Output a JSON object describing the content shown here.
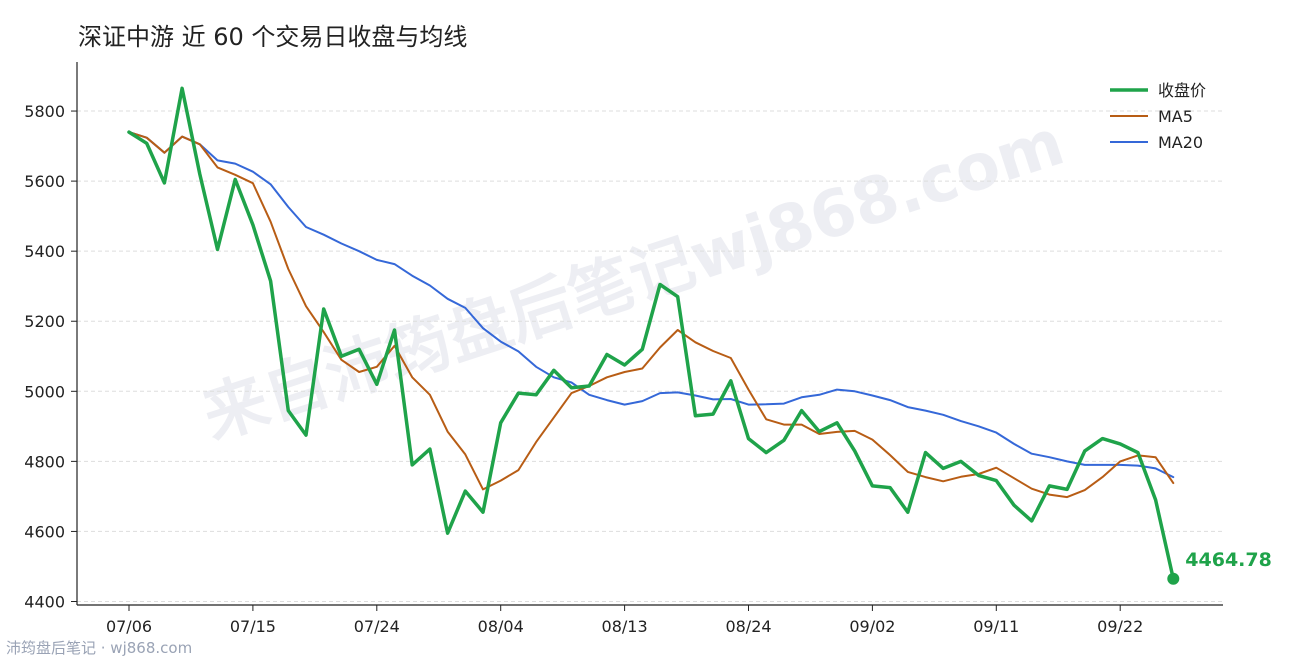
{
  "watermark": "来自沛筠盘后笔记wj868.com",
  "source": "沛筠盘后笔记 · wj868.com",
  "colors": {
    "close": "#1fa34a",
    "ma5": "#b85d15",
    "ma20": "#3568d8",
    "grid": "#dddddd"
  },
  "chart_data": {
    "type": "line",
    "title": "深证中游 近 60 个交易日收盘与均线",
    "x_tick_labels": [
      "07/06",
      "07/15",
      "07/24",
      "08/04",
      "08/13",
      "08/24",
      "09/02",
      "09/11",
      "09/22"
    ],
    "x_tick_index": [
      0,
      7,
      14,
      21,
      28,
      35,
      42,
      49,
      56
    ],
    "y_ticks": [
      4400,
      4600,
      4800,
      5000,
      5200,
      5400,
      5600,
      5800
    ],
    "ylim": [
      4390,
      5940
    ],
    "grid": "horizontal dashed",
    "legend_position": "top-right",
    "last_value_label": "4464.78",
    "series": [
      {
        "name": "收盘价",
        "key": "close",
        "values": [
          5740,
          5708,
          5595,
          5865,
          5620,
          5405,
          5605,
          5475,
          5315,
          4945,
          4875,
          5235,
          5100,
          5120,
          5020,
          5175,
          4790,
          4835,
          4595,
          4715,
          4655,
          4910,
          4995,
          4990,
          5060,
          5010,
          5015,
          5105,
          5075,
          5120,
          5305,
          5270,
          4930,
          4935,
          5030,
          4865,
          4825,
          4860,
          4945,
          4885,
          4910,
          4830,
          4730,
          4725,
          4655,
          4825,
          4780,
          4800,
          4760,
          4745,
          4675,
          4630,
          4730,
          4720,
          4830,
          4865,
          4850,
          4825,
          4690,
          4464.78
        ]
      },
      {
        "name": "MA5",
        "key": "ma5",
        "values": [
          5740,
          5724,
          5681,
          5727,
          5705,
          5639,
          5618,
          5594,
          5484,
          5349,
          5243,
          5169,
          5090,
          5055,
          5070,
          5130,
          5040,
          4990,
          4885,
          4820,
          4720,
          4745,
          4775,
          4855,
          4925,
          4995,
          5015,
          5040,
          5055,
          5065,
          5125,
          5175,
          5140,
          5115,
          5095,
          5005,
          4920,
          4905,
          4905,
          4878,
          4884,
          4887,
          4862,
          4818,
          4770,
          4755,
          4743,
          4756,
          4764,
          4782,
          4752,
          4722,
          4705,
          4698,
          4718,
          4755,
          4800,
          4817,
          4812,
          4738
        ]
      },
      {
        "name": "MA20",
        "key": "ma20",
        "values": [
          5740,
          5724,
          5681,
          5727,
          5705,
          5659,
          5650,
          5627,
          5591,
          5526,
          5469,
          5447,
          5422,
          5400,
          5375,
          5363,
          5330,
          5302,
          5264,
          5238,
          5180,
          5142,
          5114,
          5070,
          5040,
          5025,
          4990,
          4975,
          4962,
          4972,
          4995,
          4997,
          4988,
          4977,
          4978,
          4962,
          4963,
          4965,
          4983,
          4990,
          5005,
          5000,
          4988,
          4975,
          4955,
          4945,
          4933,
          4915,
          4900,
          4882,
          4850,
          4822,
          4812,
          4800,
          4790,
          4790,
          4790,
          4788,
          4780,
          4755
        ]
      }
    ]
  }
}
